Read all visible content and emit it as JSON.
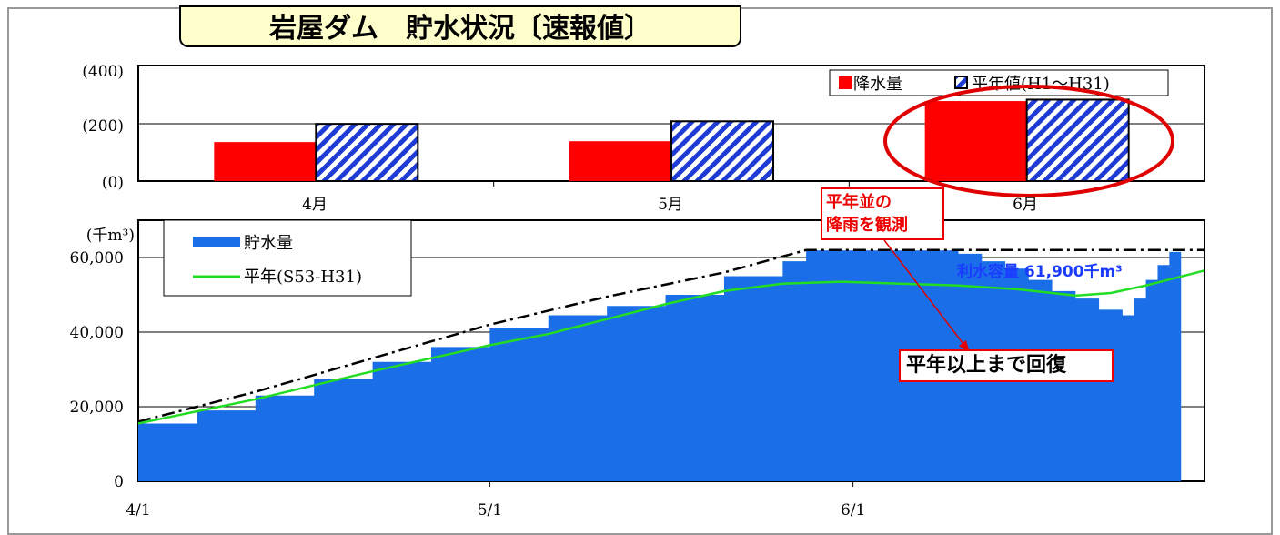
{
  "title": "岩屋ダム　貯水状況〔速報値〕",
  "colors": {
    "rain": "#ff0000",
    "normal_hatch": "#1f3bd6",
    "storage": "#1a6fe8",
    "avg_line": "#22dd22",
    "annotation": "#e00000"
  },
  "chart_data": [
    {
      "type": "bar",
      "categories": [
        "4月",
        "5月",
        "6月"
      ],
      "series": [
        {
          "name": "降水量",
          "values": [
            135,
            138,
            277
          ]
        },
        {
          "name": "平年値(H1～H31)",
          "values": [
            198,
            207,
            282
          ]
        }
      ],
      "ylim": [
        0,
        400
      ],
      "y_ticks": [
        "(0)",
        "(200)",
        "(400)"
      ],
      "legend_position": "top-right"
    },
    {
      "type": "area",
      "y_unit": "(千m³)",
      "ylim": [
        0,
        70000
      ],
      "y_ticks": [
        "0",
        "20,000",
        "40,000",
        "60,000"
      ],
      "x_ticks": [
        "4/1",
        "5/1",
        "6/1"
      ],
      "x_range_days": [
        0,
        91
      ],
      "storage": {
        "name": "貯水量",
        "points": [
          [
            0,
            15500
          ],
          [
            5,
            19000
          ],
          [
            10,
            23000
          ],
          [
            15,
            27500
          ],
          [
            20,
            32000
          ],
          [
            25,
            36000
          ],
          [
            30,
            41000
          ],
          [
            35,
            44500
          ],
          [
            40,
            47000
          ],
          [
            45,
            50000
          ],
          [
            50,
            55000
          ],
          [
            55,
            59000
          ],
          [
            57,
            61900
          ],
          [
            60,
            61900
          ],
          [
            65,
            61900
          ],
          [
            68,
            61900
          ],
          [
            70,
            61000
          ],
          [
            72,
            59000
          ],
          [
            74,
            57000
          ],
          [
            76,
            54000
          ],
          [
            78,
            51000
          ],
          [
            80,
            49000
          ],
          [
            82,
            46000
          ],
          [
            84,
            44500
          ],
          [
            85,
            49000
          ],
          [
            86,
            54000
          ],
          [
            87,
            58000
          ],
          [
            88,
            61500
          ]
        ]
      },
      "upper_rule": {
        "points": [
          [
            0,
            16000
          ],
          [
            10,
            24000
          ],
          [
            20,
            33000
          ],
          [
            30,
            42000
          ],
          [
            40,
            49500
          ],
          [
            50,
            56000
          ],
          [
            57,
            62000
          ],
          [
            70,
            62000
          ],
          [
            91,
            62000
          ]
        ]
      },
      "average": {
        "name": "平年(S53-H31)",
        "points": [
          [
            0,
            15500
          ],
          [
            10,
            22000
          ],
          [
            20,
            29500
          ],
          [
            30,
            36500
          ],
          [
            35,
            39500
          ],
          [
            40,
            43500
          ],
          [
            45,
            47500
          ],
          [
            50,
            51000
          ],
          [
            55,
            53000
          ],
          [
            60,
            53500
          ],
          [
            65,
            53000
          ],
          [
            70,
            52500
          ],
          [
            75,
            51500
          ],
          [
            78,
            50500
          ],
          [
            80,
            49800
          ],
          [
            83,
            50500
          ],
          [
            86,
            52500
          ],
          [
            91,
            56500
          ]
        ]
      },
      "capacity_label": "利水容量 61,900千m³",
      "legend_position": "top-left"
    }
  ],
  "annotations": {
    "rain_note_line1": "平年並の",
    "rain_note_line2": "降雨を観測",
    "recovery_note": "平年以上まで回復"
  }
}
